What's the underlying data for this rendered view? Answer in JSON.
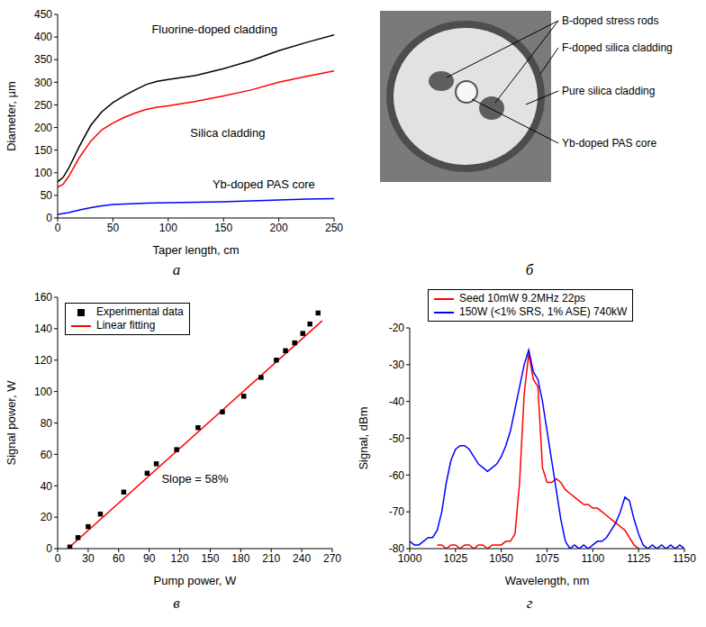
{
  "chart_data": [
    {
      "panel_label": "а",
      "type": "line",
      "x_label": "Taper length, cm",
      "y_label": "Diameter, µm",
      "x": [
        0,
        5,
        10,
        20,
        30,
        40,
        50,
        60,
        70,
        80,
        90,
        100,
        125,
        150,
        175,
        200,
        225,
        250
      ],
      "xlim": [
        0,
        250
      ],
      "xticks": [
        0,
        50,
        100,
        150,
        200,
        250
      ],
      "ylim": [
        0,
        450
      ],
      "yticks": [
        0,
        50,
        100,
        150,
        200,
        250,
        300,
        350,
        400,
        450
      ],
      "series": [
        {
          "name": "Fluorine-doped cladding",
          "color": "#000000",
          "values": [
            80,
            90,
            110,
            160,
            205,
            235,
            255,
            270,
            283,
            295,
            302,
            306,
            315,
            330,
            348,
            370,
            388,
            405
          ]
        },
        {
          "name": "Silica cladding",
          "color": "#ff0000",
          "values": [
            68,
            75,
            92,
            135,
            170,
            195,
            210,
            222,
            232,
            240,
            245,
            248,
            258,
            270,
            283,
            300,
            313,
            325
          ]
        },
        {
          "name": "Yb-doped PAS core",
          "color": "#0000ff",
          "values": [
            8,
            10,
            12,
            18,
            23,
            27,
            30,
            31,
            32,
            33,
            33.5,
            34,
            35,
            36,
            38,
            40,
            42,
            43
          ]
        }
      ]
    },
    {
      "panel_label": "в",
      "type": "scatter",
      "x_label": "Pump power, W",
      "y_label": "Signal power, W",
      "xlim": [
        0,
        270
      ],
      "xticks": [
        0,
        30,
        60,
        90,
        120,
        150,
        180,
        210,
        240,
        270
      ],
      "ylim": [
        0,
        160
      ],
      "yticks": [
        0,
        20,
        40,
        60,
        80,
        100,
        120,
        140,
        160
      ],
      "legend": "top left",
      "annotations": [
        "Slope = 58%"
      ],
      "series": [
        {
          "name": "Experimental data",
          "type": "scatter",
          "marker": "square",
          "color": "#000000",
          "x": [
            12,
            20,
            30,
            42,
            65,
            88,
            97,
            117,
            138,
            162,
            183,
            200,
            215,
            224,
            233,
            241,
            248,
            256
          ],
          "values": [
            1,
            7,
            14,
            22,
            36,
            48,
            54,
            63,
            77,
            87,
            97,
            109,
            120,
            126,
            131,
            137,
            143,
            150
          ]
        },
        {
          "name": "Linear fitting",
          "type": "line",
          "color": "#ff0000",
          "x": [
            10,
            260
          ],
          "values": [
            0,
            145
          ]
        }
      ]
    },
    {
      "panel_label": "г",
      "type": "line",
      "x_label": "Wavelength, nm",
      "y_label": "Signal, dBm",
      "x": [
        1000,
        1002.5,
        1005,
        1007.5,
        1010,
        1012.5,
        1015,
        1017.5,
        1020,
        1022.5,
        1025,
        1027.5,
        1030,
        1032.5,
        1035,
        1037.5,
        1040,
        1042.5,
        1045,
        1047.5,
        1050,
        1052.5,
        1055,
        1057.5,
        1060,
        1062.5,
        1065,
        1067.5,
        1070,
        1072.5,
        1075,
        1077.5,
        1080,
        1082.5,
        1085,
        1087.5,
        1090,
        1092.5,
        1095,
        1097.5,
        1100,
        1102.5,
        1105,
        1107.5,
        1110,
        1112.5,
        1115,
        1117.5,
        1120,
        1122.5,
        1125,
        1127.5,
        1130,
        1132.5,
        1135,
        1137.5,
        1140,
        1142.5,
        1145,
        1147.5,
        1150
      ],
      "xlim": [
        1000,
        1150
      ],
      "xticks": [
        1000,
        1025,
        1050,
        1075,
        1100,
        1125,
        1150
      ],
      "ylim": [
        -80,
        -20
      ],
      "yticks": [
        -80,
        -70,
        -60,
        -50,
        -40,
        -30,
        -20
      ],
      "legend": "top",
      "series": [
        {
          "name": "Seed 10mW 9.2MHz 22ps",
          "color": "#ff0000",
          "values": [
            null,
            null,
            null,
            null,
            null,
            null,
            -79,
            -79,
            -80,
            -79,
            -79,
            -80,
            -79,
            -79,
            -80,
            -79,
            -79,
            -80,
            -79,
            -79,
            -79,
            -78,
            -78,
            -76,
            -62,
            -38,
            -27,
            -34,
            -36,
            -58,
            -62,
            -62,
            -61,
            -62,
            -64,
            -65,
            -66,
            -67,
            -68,
            -68,
            -69,
            -69,
            -70,
            -71,
            -72,
            -73,
            -74,
            -75,
            -77,
            -79,
            -80,
            null,
            null,
            null,
            null,
            null,
            null,
            null,
            null,
            null,
            null
          ]
        },
        {
          "name": "150W (<1% SRS, 1% ASE) 740kW",
          "color": "#0000ff",
          "values": [
            -78,
            -79,
            -79,
            -78,
            -77,
            -77,
            -75,
            -70,
            -62,
            -56,
            -53,
            -52,
            -52,
            -53,
            -55,
            -57,
            -58,
            -59,
            -58,
            -57,
            -55,
            -52,
            -48,
            -42,
            -36,
            -30,
            -26,
            -32,
            -34,
            -40,
            -48,
            -56,
            -64,
            -72,
            -78,
            -80,
            -79,
            -80,
            -79,
            -80,
            -79,
            -78,
            -78,
            -77,
            -75,
            -73,
            -70,
            -66,
            -67,
            -72,
            -76,
            -79,
            -80,
            -79,
            -80,
            -79,
            -80,
            -79,
            -80,
            -79,
            -80
          ]
        }
      ]
    }
  ],
  "diagram": {
    "panel_label": "б",
    "labels": [
      "B-doped stress rods",
      "F-doped silica cladding",
      "Pure silica cladding",
      "Yb-doped PAS core"
    ]
  }
}
